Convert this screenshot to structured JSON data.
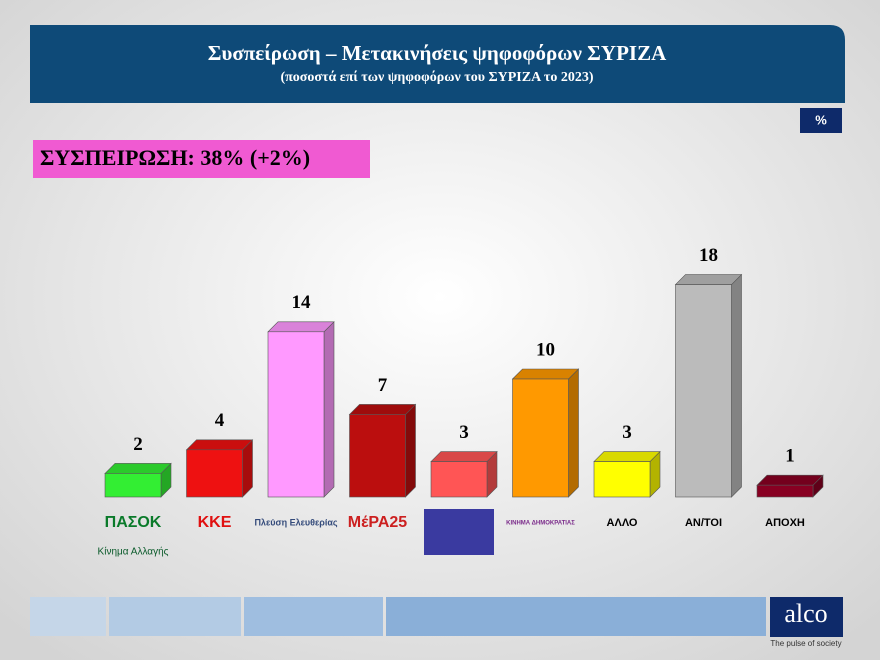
{
  "chart_data": {
    "type": "bar3d",
    "title": "Συσπείρωση – Μετακινήσεις ψηφοφόρων ΣΥΡΙΖΑ",
    "subtitle": "(ποσοστά επί των ψηφοφόρων του ΣΥΡΙΖΑ το 2023)",
    "unit": "%",
    "annotation": "ΣΥΣΠΕΙΡΩΣΗ: 38% (+2%)",
    "categories": [
      "ΠΑΣΟΚ",
      "ΚΚΕ",
      "Πλεύση Ελευθερίας",
      "ΜέΡΑ25",
      null,
      "ΚΙΝΗΜΑ ΔΗΜΟΚΡΑΤΙΑΣ",
      "ΑΛΛΟ",
      "ΑΝ/ΤΟΙ",
      "ΑΠΟΧΗ"
    ],
    "sublabels": [
      "Κίνημα Αλλαγής",
      null,
      null,
      null,
      null,
      null,
      null,
      null,
      null
    ],
    "values": [
      2,
      4,
      14,
      7,
      3,
      10,
      3,
      18,
      1
    ],
    "colors": [
      "#33ee33",
      "#ee1111",
      "#ff99ff",
      "#bb0e0e",
      "#ff5555",
      "#ff9900",
      "#ffff00",
      "#bbbbbb",
      "#880022"
    ]
  },
  "brand": {
    "name": "alco",
    "tagline": "The pulse of society"
  }
}
